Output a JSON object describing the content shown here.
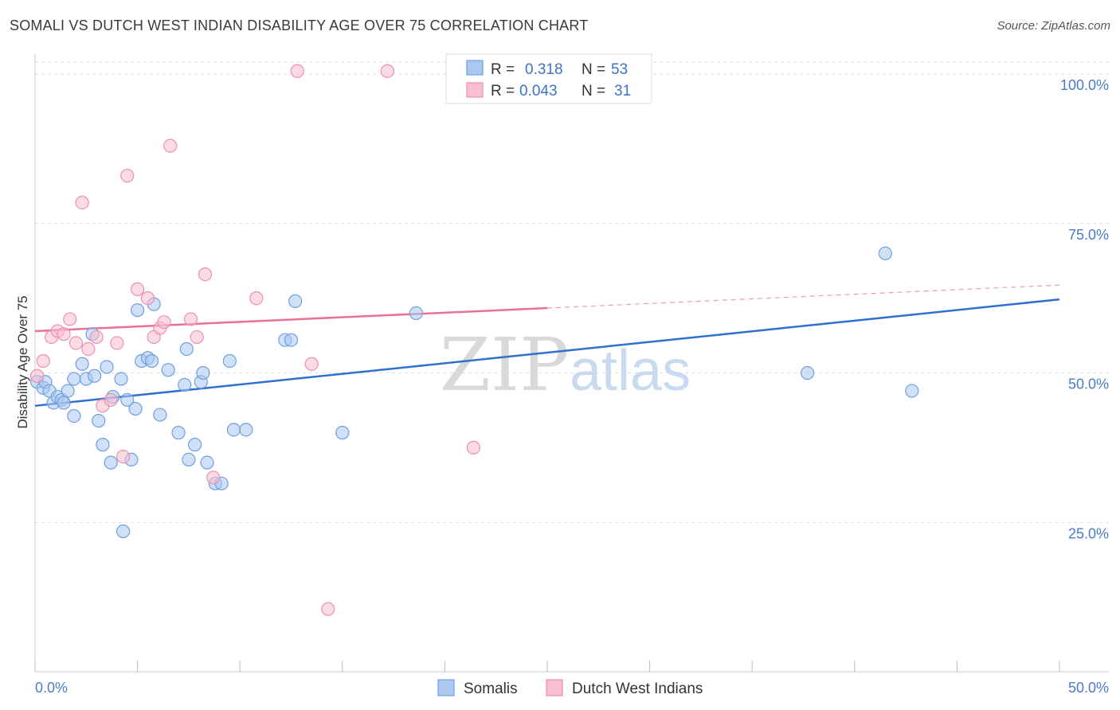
{
  "title": "SOMALI VS DUTCH WEST INDIAN DISABILITY AGE OVER 75 CORRELATION CHART",
  "source": "Source: ZipAtlas.com",
  "watermark": {
    "zip": "ZIP",
    "atlas": "atlas"
  },
  "colors": {
    "somali_fill": "#aac8f0",
    "somali_stroke": "#6f9fe0",
    "somali_line": "#2f6fd0",
    "dutch_fill": "#f7bfd0",
    "dutch_stroke": "#ee8fac",
    "dutch_line": "#e8709a",
    "grid": "#dddddd",
    "tick_text": "#4a7cc7"
  },
  "legend": {
    "r_label": "R =",
    "n_label": "N =",
    "rows": [
      {
        "series": "Somalis",
        "r": "0.318",
        "n": "53"
      },
      {
        "series": "Dutch West Indians",
        "r": "0.043",
        "n": "31"
      }
    ]
  },
  "chart_data": {
    "type": "scatter",
    "title": "SOMALI VS DUTCH WEST INDIAN DISABILITY AGE OVER 75 CORRELATION CHART",
    "xlabel": "",
    "ylabel": "Disability Age Over 75",
    "xlim": [
      0,
      50
    ],
    "ylim": [
      0,
      102
    ],
    "x_tick_labels": [
      "0.0%",
      "50.0%"
    ],
    "y_ticks": [
      25,
      50,
      75,
      100
    ],
    "y_tick_labels": [
      "25.0%",
      "50.0%",
      "75.0%",
      "100.0%"
    ],
    "grid": true,
    "series": [
      {
        "name": "Somalis",
        "r": 0.318,
        "n": 53,
        "trend": {
          "x": [
            0,
            50
          ],
          "y": [
            44.5,
            62.3
          ],
          "solid_to": 50
        },
        "points": [
          [
            0.1,
            48.5
          ],
          [
            0.4,
            47.5
          ],
          [
            0.5,
            48.5
          ],
          [
            0.7,
            47.0
          ],
          [
            0.9,
            45.0
          ],
          [
            1.1,
            46.0
          ],
          [
            1.3,
            45.5
          ],
          [
            1.4,
            45.0
          ],
          [
            1.6,
            47.0
          ],
          [
            1.9,
            42.8
          ],
          [
            1.9,
            49.0
          ],
          [
            2.3,
            51.5
          ],
          [
            2.5,
            49.0
          ],
          [
            2.8,
            56.5
          ],
          [
            2.9,
            49.5
          ],
          [
            3.1,
            42.0
          ],
          [
            3.3,
            38.0
          ],
          [
            3.5,
            51.0
          ],
          [
            3.7,
            35.0
          ],
          [
            3.8,
            46.0
          ],
          [
            4.2,
            49.0
          ],
          [
            4.3,
            23.5
          ],
          [
            4.5,
            45.5
          ],
          [
            4.7,
            35.5
          ],
          [
            4.9,
            44.0
          ],
          [
            5.0,
            60.5
          ],
          [
            5.2,
            52.0
          ],
          [
            5.5,
            52.5
          ],
          [
            5.7,
            52.0
          ],
          [
            5.8,
            61.5
          ],
          [
            6.1,
            43.0
          ],
          [
            6.5,
            50.5
          ],
          [
            7.0,
            40.0
          ],
          [
            7.3,
            48.0
          ],
          [
            7.4,
            54.0
          ],
          [
            7.5,
            35.5
          ],
          [
            7.8,
            38.0
          ],
          [
            8.1,
            48.5
          ],
          [
            8.2,
            50.0
          ],
          [
            8.4,
            35.0
          ],
          [
            8.8,
            31.5
          ],
          [
            9.1,
            31.5
          ],
          [
            9.5,
            52.0
          ],
          [
            9.7,
            40.5
          ],
          [
            10.3,
            40.5
          ],
          [
            12.2,
            55.5
          ],
          [
            12.5,
            55.5
          ],
          [
            12.7,
            62.0
          ],
          [
            15.0,
            40.0
          ],
          [
            18.6,
            60.0
          ],
          [
            37.7,
            50.0
          ],
          [
            41.5,
            70.0
          ],
          [
            42.8,
            47.0
          ]
        ]
      },
      {
        "name": "Dutch West Indians",
        "r": 0.043,
        "n": 31,
        "trend": {
          "x": [
            0,
            50
          ],
          "y": [
            57.0,
            64.7
          ],
          "solid_to": 25
        },
        "points": [
          [
            0.1,
            49.5
          ],
          [
            0.4,
            52.0
          ],
          [
            0.8,
            56.0
          ],
          [
            1.1,
            57.0
          ],
          [
            1.4,
            56.5
          ],
          [
            1.7,
            59.0
          ],
          [
            2.0,
            55.0
          ],
          [
            2.3,
            78.5
          ],
          [
            2.6,
            54.0
          ],
          [
            3.0,
            56.0
          ],
          [
            3.3,
            44.5
          ],
          [
            3.7,
            45.5
          ],
          [
            4.0,
            55.0
          ],
          [
            4.3,
            36.0
          ],
          [
            4.5,
            83.0
          ],
          [
            5.0,
            64.0
          ],
          [
            5.5,
            62.5
          ],
          [
            5.8,
            56.0
          ],
          [
            6.1,
            57.5
          ],
          [
            6.3,
            58.5
          ],
          [
            6.6,
            88.0
          ],
          [
            7.6,
            59.0
          ],
          [
            7.9,
            56.0
          ],
          [
            8.3,
            66.5
          ],
          [
            8.7,
            32.5
          ],
          [
            10.8,
            62.5
          ],
          [
            12.8,
            100.5
          ],
          [
            13.5,
            51.5
          ],
          [
            14.3,
            10.5
          ],
          [
            17.2,
            100.5
          ],
          [
            21.4,
            37.5
          ]
        ]
      }
    ]
  }
}
